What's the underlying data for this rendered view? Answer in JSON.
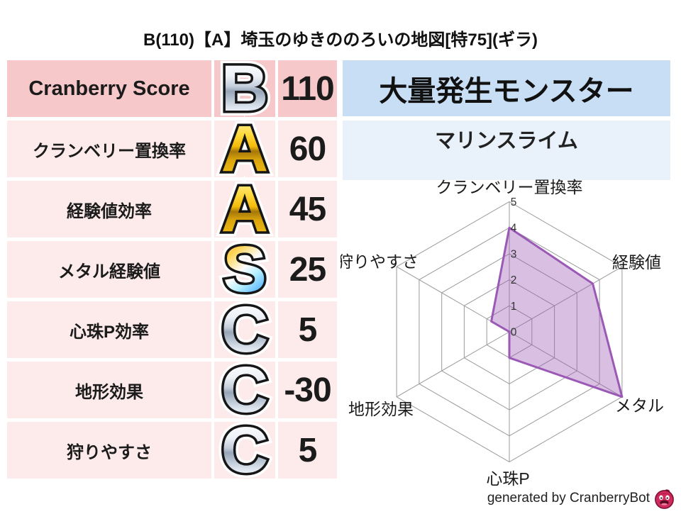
{
  "title": "B(110)【A】埼玉のゆきののろいの地図[特75](ギラ)",
  "table": {
    "rows": [
      {
        "label": "Cranberry Score",
        "grade": "B",
        "badge": "silver",
        "value": "110",
        "emphasis": true
      },
      {
        "label": "クランベリー置換率",
        "grade": "A",
        "badge": "gold",
        "value": "60",
        "emphasis": false
      },
      {
        "label": "経験値効率",
        "grade": "A",
        "badge": "gold",
        "value": "45",
        "emphasis": false
      },
      {
        "label": "メタル経験値",
        "grade": "S",
        "badge": "rainbow",
        "value": "25",
        "emphasis": false
      },
      {
        "label": "心珠P効率",
        "grade": "C",
        "badge": "silver",
        "value": "5",
        "emphasis": false
      },
      {
        "label": "地形効果",
        "grade": "C",
        "badge": "silver",
        "value": "-30",
        "emphasis": false
      },
      {
        "label": "狩りやすさ",
        "grade": "C",
        "badge": "silver",
        "value": "5",
        "emphasis": false
      }
    ]
  },
  "monster_panel": {
    "header": "大量発生モンスター",
    "monster": "マリンスライム"
  },
  "chart_data": {
    "type": "radar",
    "categories": [
      "クランベリー置換率",
      "経験値",
      "メタル",
      "心珠P",
      "地形効果",
      "狩りやすさ"
    ],
    "values": [
      4,
      3.7,
      5,
      1,
      0,
      0.8
    ],
    "ticks": [
      0,
      1,
      2,
      3,
      4,
      5
    ],
    "max": 5,
    "grid": true,
    "fill": "rgba(155,89,182,0.38)",
    "stroke": "#9b59b6",
    "grid_color": "#9a9a9a"
  },
  "footer": {
    "credit": "generated by CranberryBot",
    "icon": "cranberry-icon"
  },
  "colors": {
    "row_emphasis_pink": "#f7c8c9",
    "row_light_pink": "#fdebeb",
    "header_blue": "#c8def4",
    "panel_blue": "#e9f2fb"
  }
}
